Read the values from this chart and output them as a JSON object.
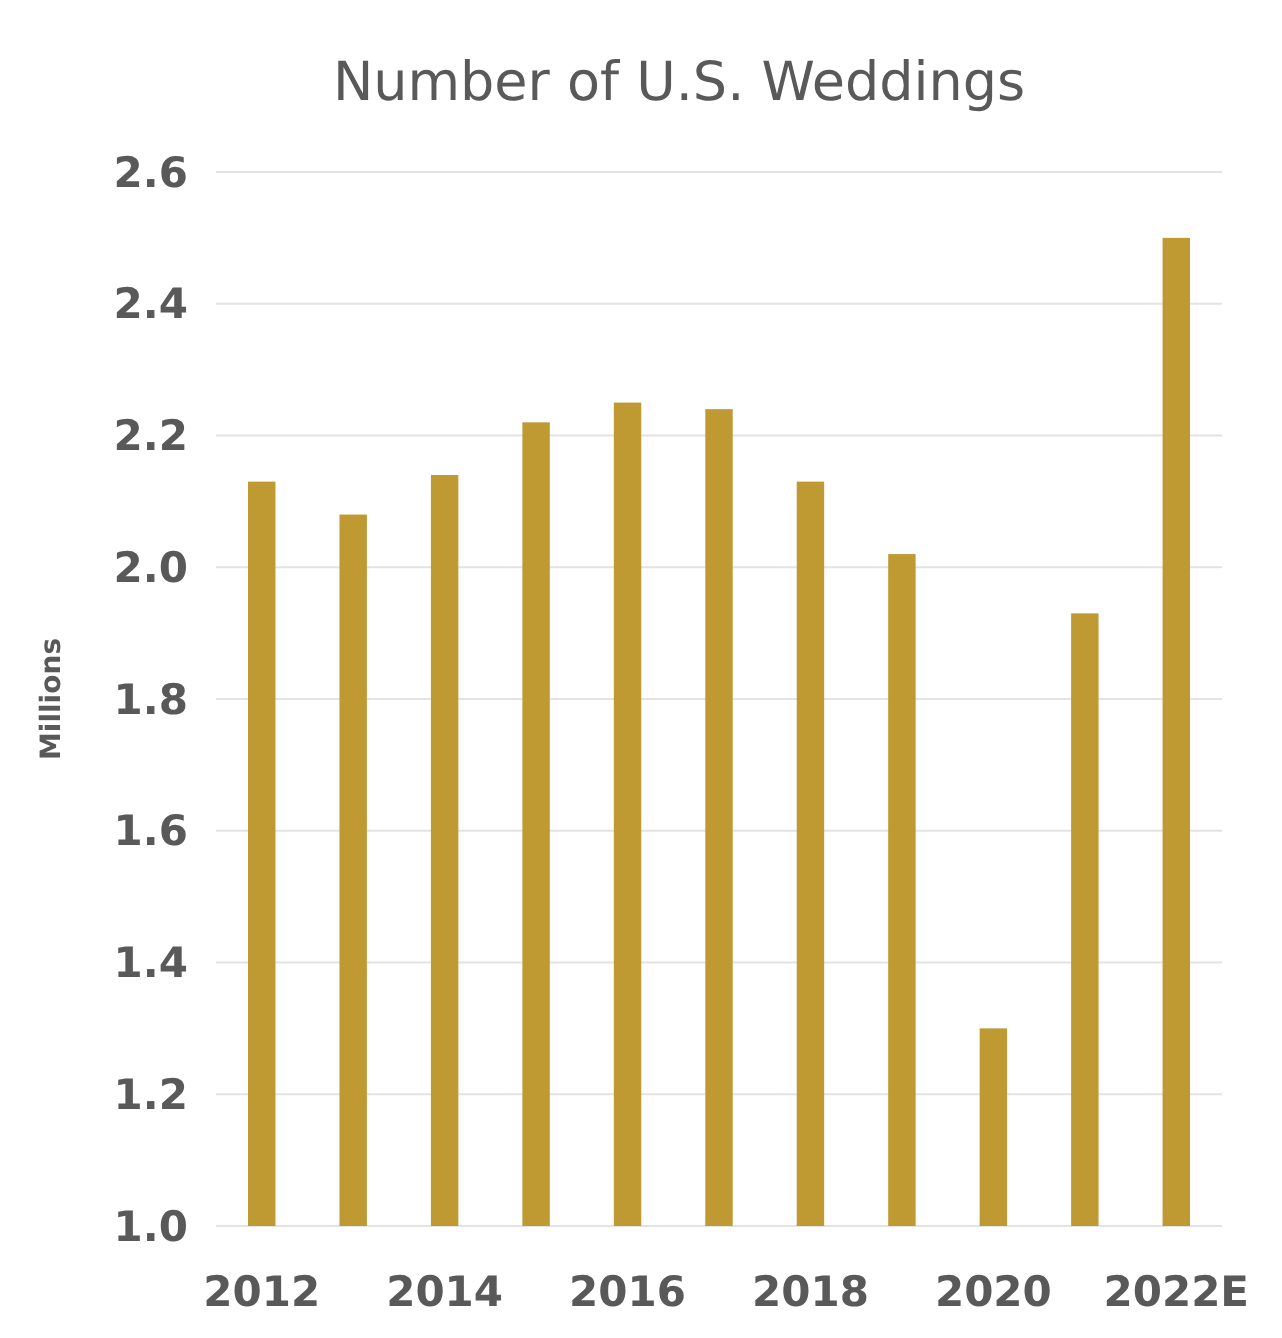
{
  "chart_data": {
    "type": "bar",
    "title": "Number of U.S. Weddings",
    "ylabel": "Millions",
    "categories": [
      "2012",
      null,
      "2014",
      null,
      "2016",
      null,
      "2018",
      null,
      "2020",
      null,
      "2022E"
    ],
    "values": [
      2.13,
      2.08,
      2.14,
      2.22,
      2.25,
      2.24,
      2.13,
      2.02,
      1.3,
      1.93,
      2.5
    ],
    "color": "#bf9a33",
    "ylim": [
      1.0,
      2.6
    ],
    "yticks": [
      {
        "value": 1.0,
        "label": "1.0"
      },
      {
        "value": 1.2,
        "label": "1.2"
      },
      {
        "value": 1.4,
        "label": "1.4"
      },
      {
        "value": 1.6,
        "label": "1.6"
      },
      {
        "value": 1.8,
        "label": "1.8"
      },
      {
        "value": 2.0,
        "label": "2.0"
      },
      {
        "value": 2.2,
        "label": "2.2"
      },
      {
        "value": 2.4,
        "label": "2.4"
      },
      {
        "value": 2.6,
        "label": "2.6"
      }
    ],
    "grid": "y"
  }
}
